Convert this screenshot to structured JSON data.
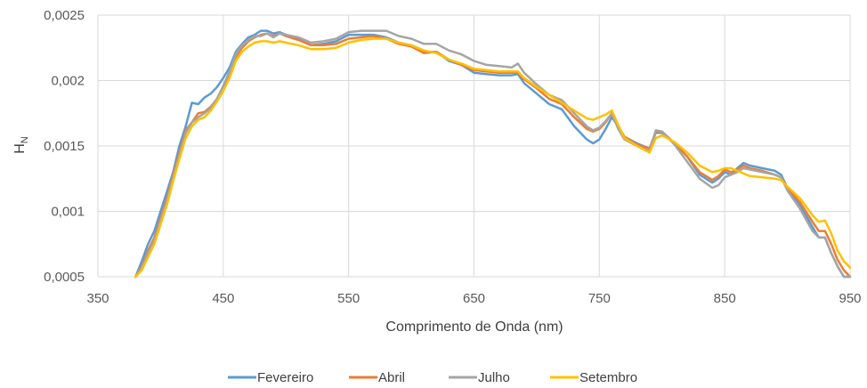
{
  "chart_data": {
    "type": "line",
    "xlabel": "Comprimento de Onda (nm)",
    "ylabel": "H",
    "ylabel_subscript": "N",
    "xlim": [
      350,
      950
    ],
    "ylim": [
      0.0005,
      0.0025
    ],
    "x_ticks": [
      350,
      450,
      550,
      650,
      750,
      850,
      950
    ],
    "x_tick_labels": [
      "350",
      "450",
      "550",
      "650",
      "750",
      "850",
      "950"
    ],
    "y_ticks": [
      0.0005,
      0.001,
      0.0015,
      0.002,
      0.0025
    ],
    "y_tick_labels": [
      "0,0005",
      "0,001",
      "0,0015",
      "0,002",
      "0,0025"
    ],
    "grid": true,
    "legend_position": "bottom",
    "x": [
      380,
      385,
      390,
      395,
      400,
      405,
      410,
      415,
      420,
      425,
      430,
      435,
      440,
      445,
      450,
      455,
      460,
      465,
      470,
      475,
      480,
      485,
      490,
      495,
      500,
      510,
      520,
      530,
      540,
      550,
      560,
      570,
      580,
      590,
      600,
      610,
      620,
      630,
      640,
      650,
      660,
      670,
      680,
      685,
      690,
      700,
      710,
      720,
      730,
      740,
      745,
      750,
      755,
      760,
      765,
      770,
      780,
      790,
      795,
      800,
      810,
      820,
      830,
      840,
      845,
      850,
      855,
      860,
      865,
      870,
      880,
      890,
      895,
      900,
      910,
      920,
      925,
      930,
      935,
      940,
      945,
      950
    ],
    "series": [
      {
        "name": "Fevereiro",
        "color": "#5b9bd5",
        "values": [
          0.0005,
          0.00062,
          0.00075,
          0.00085,
          0.001,
          0.00115,
          0.0013,
          0.0015,
          0.00165,
          0.00183,
          0.00182,
          0.00187,
          0.0019,
          0.00195,
          0.00202,
          0.0021,
          0.00222,
          0.00228,
          0.00233,
          0.00235,
          0.00238,
          0.00238,
          0.00236,
          0.00237,
          0.00235,
          0.00232,
          0.00227,
          0.00228,
          0.0023,
          0.00235,
          0.00235,
          0.00235,
          0.00233,
          0.00229,
          0.00227,
          0.00222,
          0.00222,
          0.00215,
          0.00212,
          0.00206,
          0.00205,
          0.00204,
          0.00204,
          0.00205,
          0.00198,
          0.0019,
          0.00182,
          0.00178,
          0.00165,
          0.00155,
          0.00152,
          0.00155,
          0.00163,
          0.00172,
          0.00165,
          0.00157,
          0.00152,
          0.00148,
          0.0016,
          0.0016,
          0.00152,
          0.00142,
          0.00128,
          0.00122,
          0.00125,
          0.0013,
          0.00128,
          0.00133,
          0.00137,
          0.00135,
          0.00133,
          0.00131,
          0.00128,
          0.00118,
          0.00105,
          0.00088,
          0.0008,
          0.0008,
          0.00068,
          0.00058,
          0.0005,
          0.0005
        ]
      },
      {
        "name": "Abril",
        "color": "#ed7d31",
        "values": [
          0.0005,
          0.00058,
          0.0007,
          0.0008,
          0.00095,
          0.0011,
          0.00128,
          0.00145,
          0.00162,
          0.00168,
          0.00175,
          0.00176,
          0.0018,
          0.00186,
          0.00195,
          0.00205,
          0.00218,
          0.00225,
          0.0023,
          0.00233,
          0.00235,
          0.00236,
          0.00234,
          0.00236,
          0.00234,
          0.00231,
          0.00227,
          0.00227,
          0.00228,
          0.00232,
          0.00233,
          0.00234,
          0.00232,
          0.00228,
          0.00226,
          0.00221,
          0.00222,
          0.00216,
          0.00212,
          0.00208,
          0.00207,
          0.00206,
          0.00206,
          0.00206,
          0.00201,
          0.00194,
          0.00186,
          0.00182,
          0.00172,
          0.00163,
          0.00161,
          0.00163,
          0.00168,
          0.00175,
          0.00165,
          0.00157,
          0.00151,
          0.00148,
          0.00161,
          0.00161,
          0.00152,
          0.00142,
          0.0013,
          0.00124,
          0.00127,
          0.00132,
          0.0013,
          0.00132,
          0.00135,
          0.00133,
          0.00131,
          0.00128,
          0.00126,
          0.00118,
          0.00107,
          0.00092,
          0.00085,
          0.00085,
          0.00075,
          0.00063,
          0.00055,
          0.0005
        ]
      },
      {
        "name": "Julho",
        "color": "#a5a5a5",
        "values": [
          0.0005,
          0.00057,
          0.00068,
          0.00078,
          0.00093,
          0.00108,
          0.00126,
          0.00143,
          0.0016,
          0.00168,
          0.00172,
          0.00175,
          0.00179,
          0.00186,
          0.00196,
          0.00207,
          0.0022,
          0.00227,
          0.00231,
          0.00234,
          0.00234,
          0.00236,
          0.00233,
          0.00236,
          0.00235,
          0.00233,
          0.00229,
          0.0023,
          0.00232,
          0.00237,
          0.00238,
          0.00238,
          0.00238,
          0.00234,
          0.00232,
          0.00228,
          0.00228,
          0.00223,
          0.0022,
          0.00215,
          0.00212,
          0.00211,
          0.0021,
          0.00213,
          0.00206,
          0.00197,
          0.00189,
          0.00185,
          0.00175,
          0.00165,
          0.00162,
          0.00164,
          0.00169,
          0.00175,
          0.00163,
          0.00155,
          0.0015,
          0.00146,
          0.00162,
          0.00161,
          0.00151,
          0.00138,
          0.00125,
          0.00118,
          0.0012,
          0.00126,
          0.00128,
          0.0013,
          0.00133,
          0.00132,
          0.0013,
          0.00128,
          0.00126,
          0.00116,
          0.00102,
          0.00085,
          0.0008,
          0.0008,
          0.00068,
          0.00058,
          0.0005,
          0.0005
        ]
      },
      {
        "name": "Setembro",
        "color": "#ffc000",
        "values": [
          0.0005,
          0.00055,
          0.00065,
          0.00075,
          0.0009,
          0.00105,
          0.00123,
          0.0014,
          0.00156,
          0.00165,
          0.0017,
          0.00172,
          0.00177,
          0.00184,
          0.00192,
          0.00202,
          0.00215,
          0.00222,
          0.00226,
          0.00229,
          0.0023,
          0.0023,
          0.00229,
          0.0023,
          0.00229,
          0.00227,
          0.00224,
          0.00224,
          0.00225,
          0.00229,
          0.00231,
          0.00232,
          0.00232,
          0.00229,
          0.00227,
          0.00223,
          0.00221,
          0.00216,
          0.00213,
          0.00209,
          0.00208,
          0.00207,
          0.00207,
          0.00207,
          0.00202,
          0.00195,
          0.00189,
          0.00183,
          0.00177,
          0.00171,
          0.0017,
          0.00172,
          0.00174,
          0.00177,
          0.00166,
          0.00156,
          0.0015,
          0.00145,
          0.00156,
          0.00158,
          0.00153,
          0.00145,
          0.00135,
          0.0013,
          0.00131,
          0.00133,
          0.00133,
          0.00131,
          0.00129,
          0.00127,
          0.00126,
          0.00125,
          0.00124,
          0.00119,
          0.0011,
          0.00097,
          0.00092,
          0.00093,
          0.00083,
          0.0007,
          0.00062,
          0.00057
        ]
      }
    ]
  }
}
